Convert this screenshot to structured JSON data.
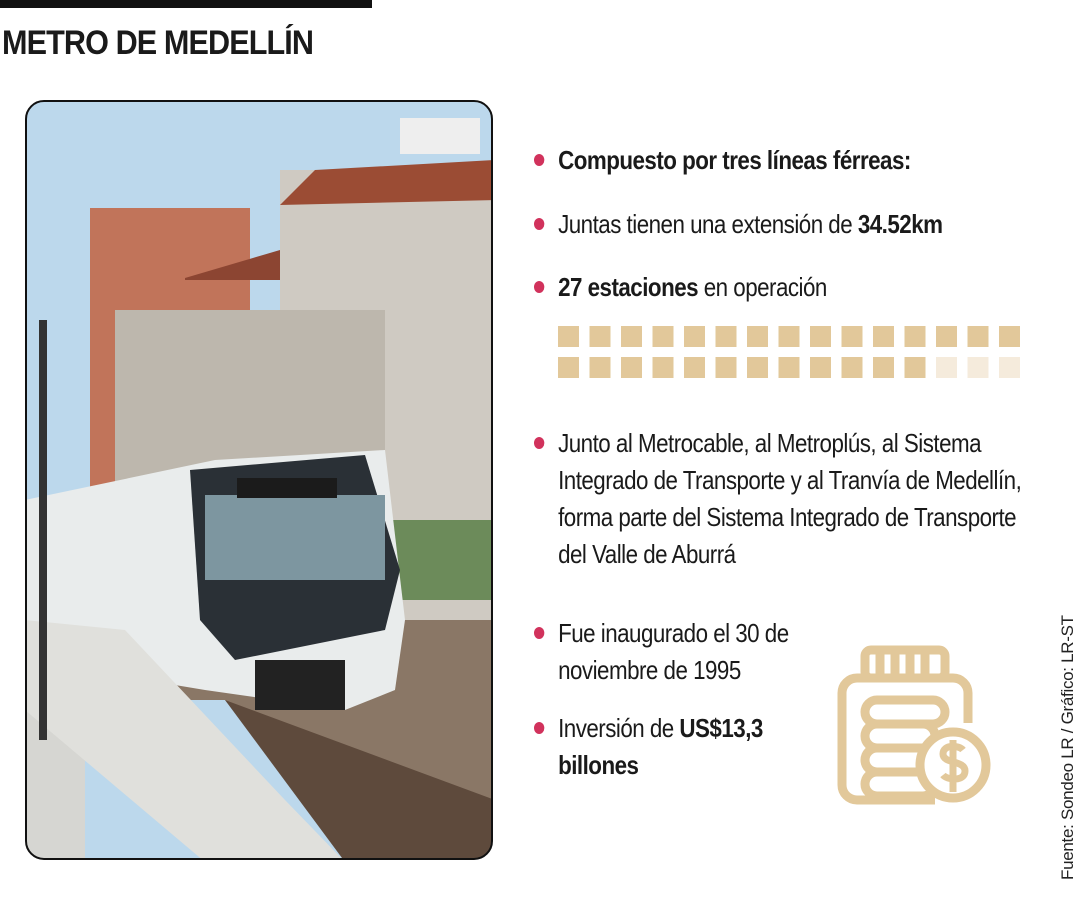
{
  "header": {
    "title": "METRO DE MEDELLÍN"
  },
  "bullets": [
    {
      "parts": [
        {
          "text": "Compuesto por tres líneas férreas:",
          "bold": true
        }
      ]
    },
    {
      "parts": [
        {
          "text": "Juntas tienen una extensión de ",
          "bold": false
        },
        {
          "text": "34.52km",
          "bold": true
        }
      ]
    },
    {
      "parts": [
        {
          "text": "27 estaciones",
          "bold": true
        },
        {
          "text": " en operación",
          "bold": false
        }
      ]
    },
    {
      "parts": [
        {
          "text": "Junto al Metrocable, al Metroplús, al Sistema Integrado de Transporte y al Tranvía de Medellín, forma parte del Sistema Integrado de Transporte del Valle de Aburrá",
          "bold": false
        }
      ]
    },
    {
      "parts": [
        {
          "text": "Fue inaugurado el 30 de noviembre de 1995",
          "bold": false
        }
      ]
    },
    {
      "parts": [
        {
          "text": "Inversión de ",
          "bold": false
        },
        {
          "text": "US$13,3 billones",
          "bold": true
        }
      ]
    }
  ],
  "pictogram": {
    "filled": 27,
    "filled_color": "#e2c89a",
    "empty_color": "#f5ebdc"
  },
  "source": "Fuente: Sondeo LR / Gráfico: LR-ST"
}
